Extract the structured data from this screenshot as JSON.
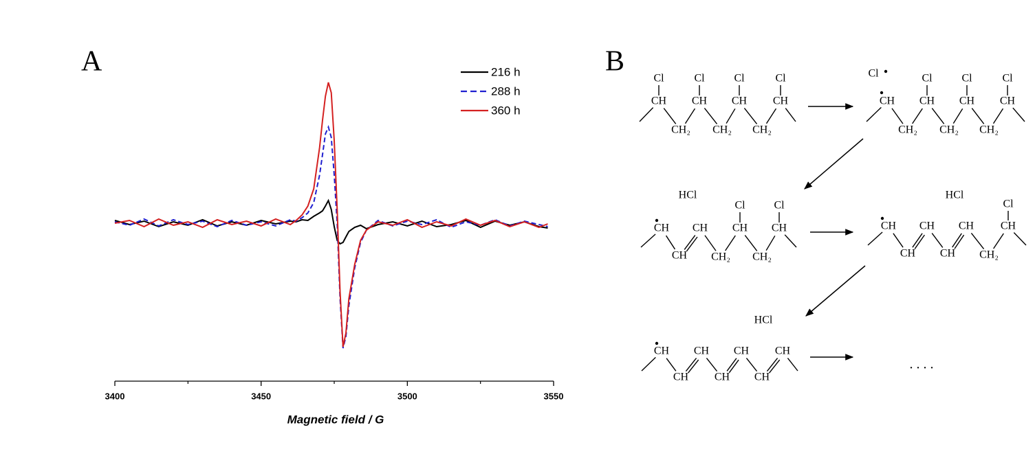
{
  "panel_labels": [
    "A",
    "B"
  ],
  "chart_data": {
    "type": "line",
    "xlabel": "Magnetic field / G",
    "x": [
      3400,
      3405,
      3410,
      3415,
      3420,
      3425,
      3430,
      3435,
      3440,
      3445,
      3450,
      3455,
      3460,
      3462,
      3464,
      3466,
      3468,
      3470,
      3471,
      3472,
      3473,
      3474,
      3475,
      3476,
      3477,
      3478,
      3479,
      3480,
      3482,
      3484,
      3486,
      3488,
      3490,
      3495,
      3500,
      3505,
      3510,
      3515,
      3520,
      3525,
      3530,
      3535,
      3540,
      3545,
      3548
    ],
    "xlim": [
      3400,
      3550
    ],
    "xticks": [
      3400,
      3450,
      3500,
      3550
    ],
    "minor_xticks": [
      3425,
      3475,
      3525
    ],
    "ylim": [
      -230,
      230
    ],
    "legend": "upper right",
    "series": [
      {
        "name": "216 h",
        "color": "#000000",
        "dash": "solid",
        "values": [
          4,
          -2,
          3,
          -5,
          2,
          -3,
          5,
          -4,
          2,
          -3,
          4,
          -1,
          3,
          2,
          5,
          4,
          10,
          15,
          18,
          25,
          33,
          20,
          -5,
          -25,
          -30,
          -28,
          -20,
          -12,
          -6,
          -3,
          -8,
          -5,
          -2,
          2,
          -4,
          3,
          -5,
          -2,
          4,
          -6,
          3,
          -3,
          2,
          -5,
          -7
        ]
      },
      {
        "name": "288 h",
        "color": "#1f1fd0",
        "dash": "dashed",
        "values": [
          2,
          -3,
          6,
          -4,
          5,
          -2,
          3,
          -5,
          4,
          -3,
          2,
          -4,
          5,
          3,
          8,
          15,
          30,
          70,
          100,
          130,
          140,
          125,
          70,
          0,
          -110,
          -182,
          -165,
          -120,
          -65,
          -28,
          -10,
          -3,
          4,
          -4,
          3,
          -2,
          5,
          -6,
          2,
          -3,
          5,
          -4,
          3,
          -2,
          -5
        ]
      },
      {
        "name": "360 h",
        "color": "#d42020",
        "dash": "solid",
        "values": [
          0,
          4,
          -5,
          6,
          -3,
          2,
          -6,
          5,
          -2,
          3,
          -4,
          6,
          -2,
          4,
          12,
          25,
          50,
          110,
          150,
          185,
          205,
          190,
          120,
          20,
          -100,
          -180,
          -160,
          -110,
          -60,
          -25,
          -10,
          -4,
          2,
          -3,
          5,
          -6,
          2,
          -4,
          6,
          -3,
          4,
          -5,
          2,
          -6,
          -1
        ]
      }
    ]
  },
  "scheme": {
    "structures": [
      {
        "labels": [
          "Cl",
          "Cl",
          "Cl",
          "Cl",
          "CH",
          "CH",
          "CH",
          "CH",
          "CH₂",
          "CH₂",
          "CH₂"
        ]
      },
      {
        "labels": [
          "Cl",
          "CH",
          "CH",
          "CH",
          "CH",
          "Cl",
          "Cl",
          "Cl",
          "CH₂",
          "CH₂",
          "CH₂"
        ]
      },
      {
        "labels": [
          "HCl",
          "CH",
          "CH",
          "CH",
          "CH",
          "CH",
          "Cl",
          "Cl",
          "CH₂",
          "CH₂"
        ]
      },
      {
        "labels": [
          "HCl",
          "CH",
          "CH",
          "CH",
          "CH",
          "CH",
          "CH",
          "CH₂",
          "Cl"
        ]
      },
      {
        "labels": [
          "HCl",
          "CH",
          "CH",
          "CH",
          "CH",
          "CH",
          "CH",
          "CH"
        ]
      }
    ],
    "continuation": ". . . ."
  }
}
